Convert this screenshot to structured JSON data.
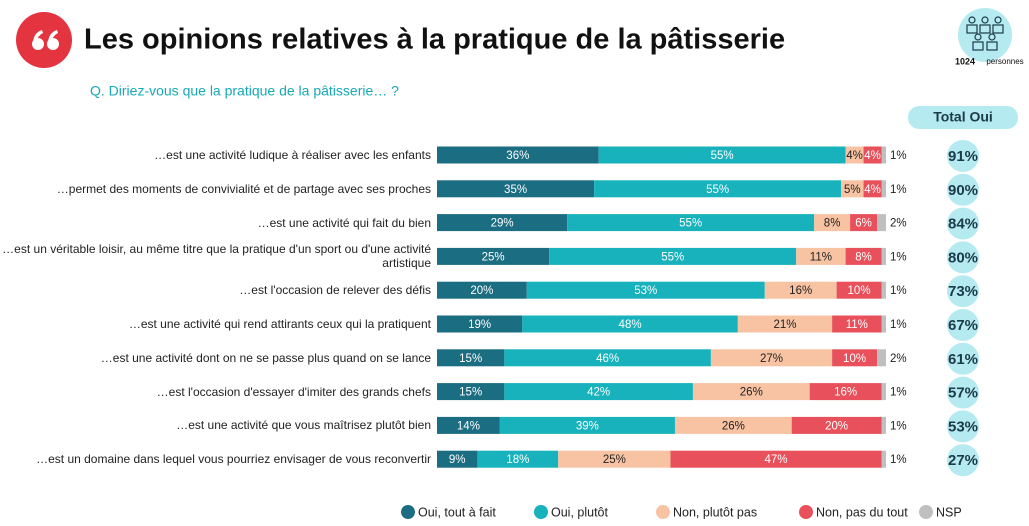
{
  "chart_data": {
    "type": "stacked-bar-horizontal",
    "title": "Les opinions relatives à la pratique de la pâtisserie",
    "subtitle": "Q. Diriez-vous que la pratique de la pâtisserie… ?",
    "sample": {
      "count": "1024",
      "unit": "personnes"
    },
    "xlim": [
      0,
      100
    ],
    "categories": [
      "…est une activité ludique à réaliser avec les enfants",
      "…permet des moments de convivialité et de partage avec ses proches",
      "…est une activité qui fait du bien",
      "…est un véritable loisir, au même titre que la pratique d'un sport ou d'une activité artistique",
      "…est l'occasion de relever des défis",
      "…est une activité qui rend attirants ceux qui la pratiquent",
      "…est une activité dont on ne se passe plus quand on se lance",
      "…est l'occasion d'essayer d'imiter des grands chefs",
      "…est une activité que vous maîtrisez plutôt bien",
      "…est un domaine dans lequel vous pourriez envisager de vous reconvertir"
    ],
    "series": [
      {
        "name": "Oui, tout à fait",
        "color": "#1b6d82",
        "values": [
          36,
          35,
          29,
          25,
          20,
          19,
          15,
          15,
          14,
          9
        ],
        "value_labels": [
          "36%",
          "35%",
          "29%",
          "25%",
          "20%",
          "19%",
          "15%",
          "15%",
          "14%",
          "9%"
        ]
      },
      {
        "name": "Oui, plutôt",
        "color": "#17b2bc",
        "values": [
          55,
          55,
          55,
          55,
          53,
          48,
          46,
          42,
          39,
          18
        ],
        "value_labels": [
          "55%",
          "55%",
          "55%",
          "55%",
          "53%",
          "48%",
          "46%",
          "42%",
          "39%",
          "18%"
        ]
      },
      {
        "name": "Non, plutôt pas",
        "color": "#f7c3a3",
        "values": [
          4,
          5,
          8,
          11,
          16,
          21,
          27,
          26,
          26,
          25
        ],
        "value_labels": [
          "4%",
          "5%",
          "8%",
          "11%",
          "16%",
          "21%",
          "27%",
          "26%",
          "26%",
          "25%"
        ]
      },
      {
        "name": "Non, pas du tout",
        "color": "#e8515b",
        "values": [
          4,
          4,
          6,
          8,
          10,
          11,
          10,
          16,
          20,
          47
        ],
        "value_labels": [
          "4%",
          "4%",
          "6%",
          "8%",
          "10%",
          "11%",
          "10%",
          "16%",
          "20%",
          "47%"
        ]
      },
      {
        "name": "NSP",
        "color": "#bfbfbf",
        "values": [
          1,
          1,
          2,
          1,
          1,
          1,
          2,
          1,
          1,
          1
        ],
        "value_labels": [
          "1%",
          "1%",
          "2%",
          "1%",
          "1%",
          "1%",
          "2%",
          "1%",
          "1%",
          "1%"
        ]
      }
    ],
    "totals": {
      "name": "Total Oui",
      "color": "#b5ebf0",
      "values": [
        91,
        90,
        84,
        80,
        73,
        67,
        61,
        57,
        53,
        27
      ],
      "value_labels": [
        "91%",
        "90%",
        "84%",
        "80%",
        "73%",
        "67%",
        "61%",
        "57%",
        "53%",
        "27%"
      ]
    }
  }
}
